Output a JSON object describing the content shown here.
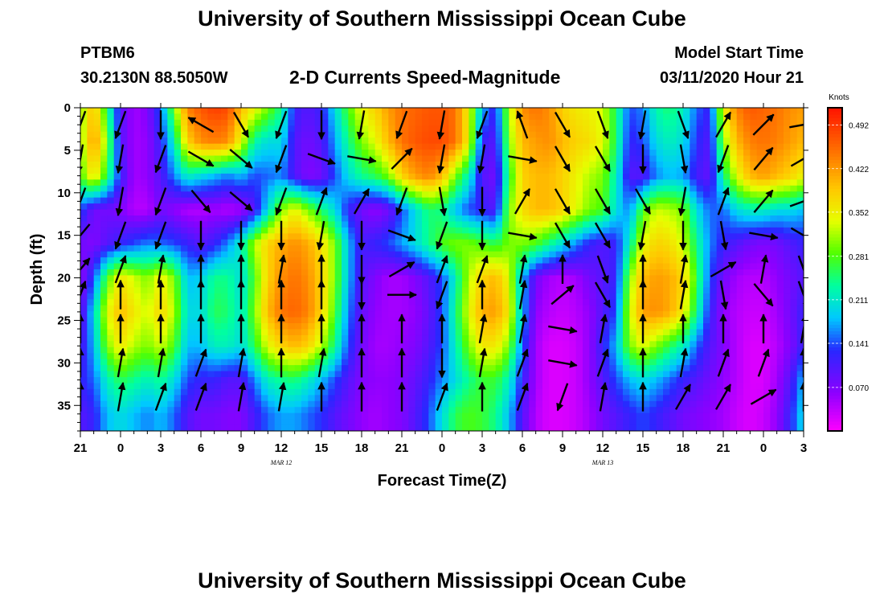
{
  "header": {
    "title": "University of Southern Mississippi Ocean Cube",
    "station_id": "PTBM6",
    "station_coords": "30.2130N 88.5050W",
    "subtitle": "2-D Currents Speed-Magnitude",
    "start_label": "Model Start Time",
    "start_value": "03/11/2020 Hour 21"
  },
  "footer": {
    "title": "University of Southern Mississippi Ocean Cube"
  },
  "chart_data": {
    "type": "heatmap",
    "title": "2-D Currents Speed-Magnitude",
    "xlabel": "Forecast Time(Z)",
    "ylabel": "Depth (ft)",
    "x_range_hours": [
      0,
      54
    ],
    "x_ticks": [
      {
        "h": 0,
        "label": "21"
      },
      {
        "h": 3,
        "label": "0"
      },
      {
        "h": 6,
        "label": "3"
      },
      {
        "h": 9,
        "label": "6"
      },
      {
        "h": 12,
        "label": "9"
      },
      {
        "h": 15,
        "label": "12"
      },
      {
        "h": 18,
        "label": "15"
      },
      {
        "h": 21,
        "label": "18"
      },
      {
        "h": 24,
        "label": "21"
      },
      {
        "h": 27,
        "label": "0"
      },
      {
        "h": 30,
        "label": "3"
      },
      {
        "h": 33,
        "label": "6"
      },
      {
        "h": 36,
        "label": "9"
      },
      {
        "h": 39,
        "label": "12"
      },
      {
        "h": 42,
        "label": "15"
      },
      {
        "h": 45,
        "label": "18"
      },
      {
        "h": 48,
        "label": "21"
      },
      {
        "h": 51,
        "label": "0"
      },
      {
        "h": 54,
        "label": "3"
      }
    ],
    "date_labels": [
      {
        "h": 15,
        "label": "MAR 12"
      },
      {
        "h": 39,
        "label": "MAR 13"
      }
    ],
    "y_range_ft": [
      0,
      38
    ],
    "y_ticks": [
      0,
      5,
      10,
      15,
      20,
      25,
      30,
      35
    ],
    "colorbar": {
      "unit": "Knots",
      "range": [
        0,
        0.52
      ],
      "tick_values": [
        0.492,
        0.422,
        0.352,
        0.281,
        0.211,
        0.141,
        0.07
      ],
      "tick_labels": [
        "0.492",
        "0.422",
        "0.352",
        "0.281",
        "0.211",
        "0.141",
        "0.070"
      ]
    },
    "speed_field_knots": {
      "x_hours": [
        0,
        1,
        2,
        3,
        4,
        5,
        6,
        7,
        8,
        9,
        10,
        11,
        12,
        13,
        14,
        15,
        16,
        17,
        18,
        19,
        20,
        21,
        22,
        23,
        24,
        25,
        26,
        27,
        28,
        29,
        30,
        31,
        32,
        33,
        34,
        35,
        36,
        37,
        38,
        39,
        40,
        41,
        42,
        43,
        44,
        45,
        46,
        47,
        48,
        49,
        50,
        51,
        52,
        53,
        54
      ],
      "depth_ft": [
        0,
        4,
        8,
        12,
        16,
        20,
        24,
        28,
        32,
        36
      ],
      "values": [
        [
          0.3,
          0.4,
          0.25,
          0.1,
          0.05,
          0.07,
          0.15,
          0.3,
          0.44,
          0.47,
          0.49,
          0.48,
          0.4,
          0.35,
          0.3,
          0.24,
          0.12,
          0.1,
          0.12,
          0.2,
          0.28,
          0.35,
          0.38,
          0.42,
          0.45,
          0.46,
          0.47,
          0.47,
          0.45,
          0.35,
          0.18,
          0.12,
          0.32,
          0.43,
          0.45,
          0.43,
          0.38,
          0.36,
          0.35,
          0.33,
          0.25,
          0.14,
          0.16,
          0.23,
          0.25,
          0.22,
          0.15,
          0.12,
          0.35,
          0.44,
          0.47,
          0.46,
          0.45,
          0.43,
          0.42
        ],
        [
          0.3,
          0.43,
          0.3,
          0.1,
          0.05,
          0.06,
          0.12,
          0.22,
          0.38,
          0.43,
          0.44,
          0.43,
          0.34,
          0.23,
          0.2,
          0.2,
          0.1,
          0.08,
          0.1,
          0.17,
          0.24,
          0.3,
          0.34,
          0.4,
          0.45,
          0.47,
          0.48,
          0.48,
          0.45,
          0.35,
          0.12,
          0.1,
          0.3,
          0.4,
          0.42,
          0.43,
          0.4,
          0.38,
          0.37,
          0.34,
          0.25,
          0.12,
          0.14,
          0.2,
          0.22,
          0.2,
          0.13,
          0.1,
          0.3,
          0.4,
          0.44,
          0.45,
          0.44,
          0.42,
          0.4
        ],
        [
          0.28,
          0.37,
          0.26,
          0.12,
          0.05,
          0.06,
          0.1,
          0.16,
          0.22,
          0.2,
          0.18,
          0.16,
          0.18,
          0.14,
          0.15,
          0.16,
          0.1,
          0.07,
          0.08,
          0.14,
          0.2,
          0.24,
          0.26,
          0.3,
          0.38,
          0.42,
          0.44,
          0.4,
          0.3,
          0.22,
          0.1,
          0.08,
          0.26,
          0.38,
          0.4,
          0.4,
          0.38,
          0.35,
          0.32,
          0.3,
          0.22,
          0.1,
          0.1,
          0.16,
          0.18,
          0.17,
          0.11,
          0.09,
          0.24,
          0.34,
          0.4,
          0.42,
          0.4,
          0.38,
          0.35
        ],
        [
          0.14,
          0.08,
          0.08,
          0.07,
          0.04,
          0.04,
          0.08,
          0.06,
          0.04,
          0.04,
          0.05,
          0.04,
          0.05,
          0.1,
          0.2,
          0.3,
          0.35,
          0.3,
          0.25,
          0.2,
          0.12,
          0.08,
          0.06,
          0.08,
          0.14,
          0.2,
          0.25,
          0.24,
          0.18,
          0.14,
          0.12,
          0.1,
          0.3,
          0.37,
          0.4,
          0.4,
          0.38,
          0.34,
          0.3,
          0.28,
          0.2,
          0.16,
          0.28,
          0.33,
          0.32,
          0.3,
          0.2,
          0.15,
          0.15,
          0.2,
          0.22,
          0.22,
          0.2,
          0.2,
          0.18
        ],
        [
          0.08,
          0.07,
          0.1,
          0.12,
          0.14,
          0.16,
          0.15,
          0.14,
          0.12,
          0.1,
          0.12,
          0.16,
          0.22,
          0.32,
          0.38,
          0.41,
          0.43,
          0.41,
          0.37,
          0.3,
          0.18,
          0.11,
          0.12,
          0.14,
          0.17,
          0.2,
          0.24,
          0.28,
          0.3,
          0.3,
          0.28,
          0.26,
          0.3,
          0.3,
          0.28,
          0.24,
          0.2,
          0.16,
          0.12,
          0.1,
          0.12,
          0.22,
          0.34,
          0.38,
          0.37,
          0.33,
          0.24,
          0.16,
          0.12,
          0.1,
          0.08,
          0.07,
          0.08,
          0.1,
          0.12
        ],
        [
          0.06,
          0.14,
          0.28,
          0.36,
          0.33,
          0.3,
          0.35,
          0.3,
          0.18,
          0.19,
          0.24,
          0.24,
          0.2,
          0.28,
          0.38,
          0.43,
          0.45,
          0.43,
          0.38,
          0.3,
          0.18,
          0.1,
          0.07,
          0.05,
          0.05,
          0.07,
          0.1,
          0.14,
          0.22,
          0.32,
          0.38,
          0.4,
          0.34,
          0.18,
          0.08,
          0.05,
          0.04,
          0.05,
          0.08,
          0.1,
          0.12,
          0.3,
          0.4,
          0.42,
          0.41,
          0.38,
          0.27,
          0.14,
          0.08,
          0.05,
          0.04,
          0.04,
          0.06,
          0.08,
          0.1
        ],
        [
          0.08,
          0.2,
          0.34,
          0.4,
          0.36,
          0.33,
          0.38,
          0.32,
          0.2,
          0.2,
          0.26,
          0.25,
          0.21,
          0.3,
          0.4,
          0.45,
          0.46,
          0.44,
          0.38,
          0.28,
          0.16,
          0.09,
          0.06,
          0.05,
          0.05,
          0.06,
          0.09,
          0.14,
          0.24,
          0.34,
          0.41,
          0.42,
          0.36,
          0.18,
          0.06,
          0.04,
          0.03,
          0.04,
          0.06,
          0.1,
          0.14,
          0.33,
          0.42,
          0.43,
          0.41,
          0.36,
          0.24,
          0.12,
          0.06,
          0.04,
          0.03,
          0.03,
          0.05,
          0.08,
          0.12
        ],
        [
          0.1,
          0.18,
          0.3,
          0.36,
          0.32,
          0.3,
          0.33,
          0.28,
          0.18,
          0.18,
          0.22,
          0.22,
          0.2,
          0.26,
          0.34,
          0.38,
          0.4,
          0.38,
          0.32,
          0.24,
          0.14,
          0.08,
          0.05,
          0.05,
          0.06,
          0.07,
          0.1,
          0.14,
          0.22,
          0.3,
          0.36,
          0.36,
          0.3,
          0.15,
          0.05,
          0.02,
          0.02,
          0.03,
          0.06,
          0.12,
          0.18,
          0.3,
          0.34,
          0.3,
          0.26,
          0.22,
          0.15,
          0.1,
          0.07,
          0.04,
          0.02,
          0.02,
          0.04,
          0.07,
          0.12
        ],
        [
          0.12,
          0.15,
          0.22,
          0.26,
          0.24,
          0.22,
          0.24,
          0.2,
          0.14,
          0.12,
          0.12,
          0.1,
          0.1,
          0.16,
          0.22,
          0.24,
          0.25,
          0.22,
          0.18,
          0.14,
          0.1,
          0.07,
          0.06,
          0.06,
          0.07,
          0.09,
          0.12,
          0.16,
          0.2,
          0.24,
          0.27,
          0.27,
          0.22,
          0.12,
          0.05,
          0.02,
          0.02,
          0.03,
          0.06,
          0.1,
          0.14,
          0.18,
          0.2,
          0.18,
          0.15,
          0.12,
          0.1,
          0.08,
          0.06,
          0.04,
          0.02,
          0.02,
          0.05,
          0.1,
          0.18
        ],
        [
          0.1,
          0.12,
          0.18,
          0.2,
          0.18,
          0.16,
          0.18,
          0.15,
          0.1,
          0.08,
          0.08,
          0.07,
          0.07,
          0.11,
          0.15,
          0.17,
          0.17,
          0.15,
          0.13,
          0.1,
          0.08,
          0.06,
          0.05,
          0.06,
          0.07,
          0.1,
          0.14,
          0.2,
          0.26,
          0.28,
          0.27,
          0.24,
          0.18,
          0.1,
          0.04,
          0.02,
          0.02,
          0.03,
          0.05,
          0.08,
          0.1,
          0.12,
          0.14,
          0.12,
          0.1,
          0.08,
          0.07,
          0.06,
          0.05,
          0.03,
          0.02,
          0.03,
          0.06,
          0.12,
          0.2
        ]
      ]
    },
    "vectors": {
      "x_hours": [
        0,
        3,
        6,
        9,
        12,
        15,
        18,
        21,
        24,
        27,
        30,
        33,
        36,
        39,
        42,
        45,
        48,
        51,
        54
      ],
      "depth_ft": [
        2,
        6,
        11,
        15,
        19,
        22,
        26,
        30,
        34
      ],
      "directions_deg": [
        [
          200,
          200,
          180,
          300,
          150,
          200,
          180,
          190,
          200,
          190,
          200,
          340,
          150,
          160,
          190,
          160,
          30,
          45,
          80
        ],
        [
          190,
          190,
          200,
          120,
          130,
          200,
          110,
          100,
          45,
          190,
          190,
          100,
          150,
          150,
          180,
          170,
          200,
          40,
          60
        ],
        [
          200,
          190,
          200,
          140,
          130,
          200,
          20,
          30,
          200,
          170,
          180,
          30,
          150,
          150,
          150,
          190,
          20,
          40,
          70
        ],
        [
          220,
          200,
          200,
          180,
          180,
          180,
          190,
          180,
          110,
          200,
          180,
          100,
          150,
          150,
          190,
          180,
          170,
          100,
          120
        ],
        [
          40,
          20,
          10,
          0,
          0,
          10,
          0,
          180,
          60,
          20,
          20,
          10,
          0,
          160,
          0,
          10,
          60,
          10,
          160
        ],
        [
          20,
          0,
          0,
          0,
          0,
          0,
          0,
          180,
          90,
          200,
          0,
          10,
          50,
          150,
          0,
          10,
          170,
          140,
          160
        ],
        [
          0,
          0,
          0,
          0,
          0,
          0,
          0,
          0,
          0,
          0,
          10,
          10,
          100,
          10,
          0,
          0,
          0,
          0,
          10
        ],
        [
          0,
          10,
          10,
          20,
          10,
          0,
          10,
          0,
          0,
          180,
          10,
          20,
          100,
          20,
          0,
          10,
          20,
          20,
          0
        ],
        [
          0,
          10,
          20,
          20,
          10,
          10,
          0,
          0,
          0,
          20,
          0,
          20,
          200,
          10,
          0,
          30,
          30,
          60,
          0
        ]
      ]
    }
  }
}
